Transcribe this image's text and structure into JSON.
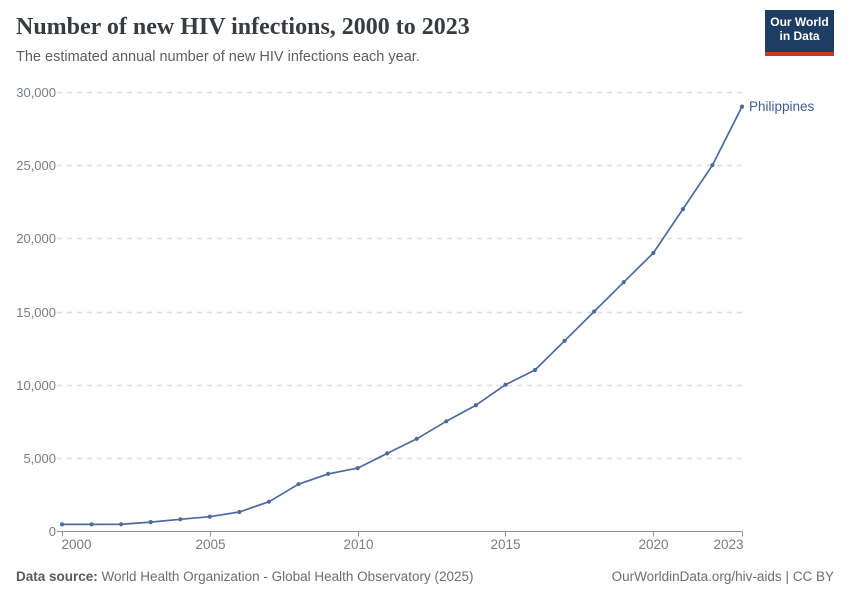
{
  "header": {
    "title": "Number of new HIV infections, 2000 to 2023",
    "subtitle": "The estimated annual number of new HIV infections each year.",
    "logo": {
      "line1": "Our World",
      "line2": "in Data"
    }
  },
  "footer": {
    "datasource_label": "Data source:",
    "datasource_value": "World Health Organization - Global Health Observatory (2025)",
    "link": "OurWorldinData.org/hiv-aids",
    "separator": "|",
    "license": "CC BY"
  },
  "colors": {
    "line": "#4C6A9C",
    "entity_label": "#3D5D94",
    "grid": "#DEDEDE",
    "axis": "#8F8F8F",
    "tick_text": "#787D82",
    "logo_bg": "#1D3D63",
    "logo_stripe": "#CF342C"
  },
  "chart_data": {
    "type": "line",
    "title": "Number of new HIV infections, 2000 to 2023",
    "subtitle": "The estimated annual number of new HIV infections each year.",
    "xlabel": "",
    "ylabel": "",
    "xlim": [
      2000,
      2023
    ],
    "ylim": [
      0,
      30000
    ],
    "grid": "horizontal-dashed",
    "legend_position": "end-of-line-label",
    "x": [
      2000,
      2001,
      2002,
      2003,
      2004,
      2005,
      2006,
      2007,
      2008,
      2009,
      2010,
      2011,
      2012,
      2013,
      2014,
      2015,
      2016,
      2017,
      2018,
      2019,
      2020,
      2021,
      2022,
      2023
    ],
    "series": [
      {
        "name": "Philippines",
        "color": "#4C6A9C",
        "values": [
          450,
          450,
          460,
          610,
          800,
          980,
          1300,
          2000,
          3200,
          3900,
          4300,
          5300,
          6300,
          7500,
          8600,
          10000,
          11000,
          13000,
          15000,
          17000,
          19000,
          22000,
          25000,
          29000
        ]
      }
    ],
    "xticks": [
      {
        "value": 2000,
        "label": "2000"
      },
      {
        "value": 2005,
        "label": "2005"
      },
      {
        "value": 2010,
        "label": "2010"
      },
      {
        "value": 2015,
        "label": "2015"
      },
      {
        "value": 2020,
        "label": "2020"
      },
      {
        "value": 2023,
        "label": "2023"
      }
    ],
    "yticks": [
      {
        "value": 0,
        "label": "0"
      },
      {
        "value": 5000,
        "label": "5,000"
      },
      {
        "value": 10000,
        "label": "10,000"
      },
      {
        "value": 15000,
        "label": "15,000"
      },
      {
        "value": 20000,
        "label": "20,000"
      },
      {
        "value": 25000,
        "label": "25,000"
      },
      {
        "value": 30000,
        "label": "30,000"
      }
    ]
  }
}
